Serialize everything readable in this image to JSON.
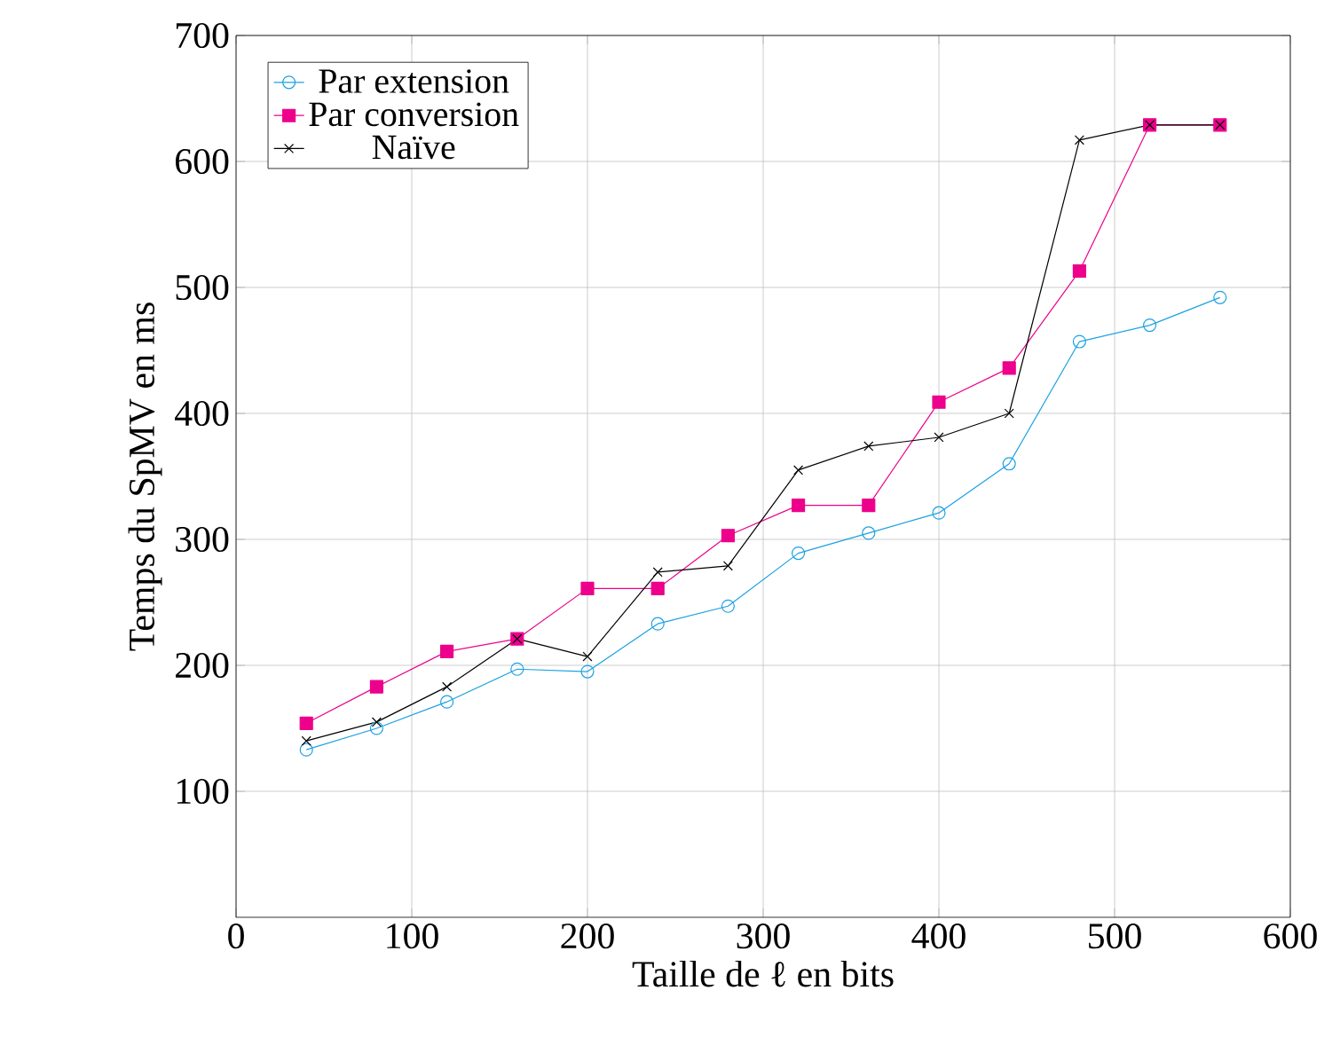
{
  "chart_data": {
    "type": "line",
    "xlabel": "Taille de ℓ en bits",
    "ylabel": "Temps du SpMV en ms",
    "x": [
      40,
      80,
      120,
      160,
      200,
      240,
      280,
      320,
      360,
      400,
      440,
      480,
      520,
      560
    ],
    "series": [
      {
        "name": "Par extension",
        "color": "#1ba1e2",
        "marker": "circle",
        "values": [
          133,
          150,
          171,
          197,
          195,
          233,
          247,
          289,
          305,
          321,
          360,
          457,
          470,
          492
        ]
      },
      {
        "name": "Par conversion",
        "color": "#ec008c",
        "marker": "square",
        "values": [
          154,
          183,
          211,
          221,
          261,
          261,
          303,
          327,
          327,
          409,
          436,
          513,
          629,
          629
        ]
      },
      {
        "name": "Naïve",
        "color": "#000000",
        "marker": "cross",
        "values": [
          140,
          155,
          183,
          221,
          207,
          274,
          279,
          355,
          374,
          381,
          400,
          617,
          629,
          629
        ]
      }
    ],
    "xlim": [
      0,
      600
    ],
    "ylim": [
      0,
      700
    ],
    "xticks": [
      0,
      100,
      200,
      300,
      400,
      500,
      600
    ],
    "yticks": [
      100,
      200,
      300,
      400,
      500,
      600,
      700
    ],
    "grid": true,
    "legend": "top left",
    "line_style": "solid"
  }
}
